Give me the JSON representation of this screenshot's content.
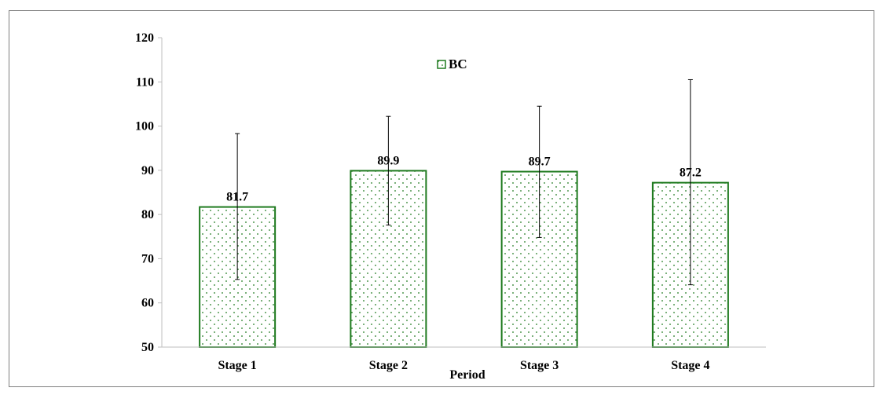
{
  "chart_data": {
    "type": "bar",
    "categories": [
      "Stage 1",
      "Stage 2",
      "Stage 3",
      "Stage 4"
    ],
    "series": [
      {
        "name": "BC",
        "values": [
          81.7,
          89.9,
          89.7,
          87.2
        ],
        "error_upper": [
          98.3,
          102.2,
          104.5,
          110.5
        ],
        "error_lower": [
          65.3,
          77.6,
          74.8,
          64.1
        ],
        "data_labels": [
          "81.7",
          "89.9",
          "89.7",
          "87.2"
        ]
      }
    ],
    "xlabel": "Period",
    "ylabel": "",
    "ylim": [
      50,
      120
    ],
    "yticks": [
      "50",
      "60",
      "70",
      "80",
      "90",
      "100",
      "110",
      "120"
    ],
    "ytick_values": [
      50,
      60,
      70,
      80,
      90,
      100,
      110,
      120
    ],
    "grid": false,
    "legend_position": "top-center",
    "colors": {
      "bar_border": "#1e7a1e",
      "bar_dots": "#1e7a1e",
      "error_bar": "#000000",
      "axis": "#bfbfbf"
    }
  }
}
